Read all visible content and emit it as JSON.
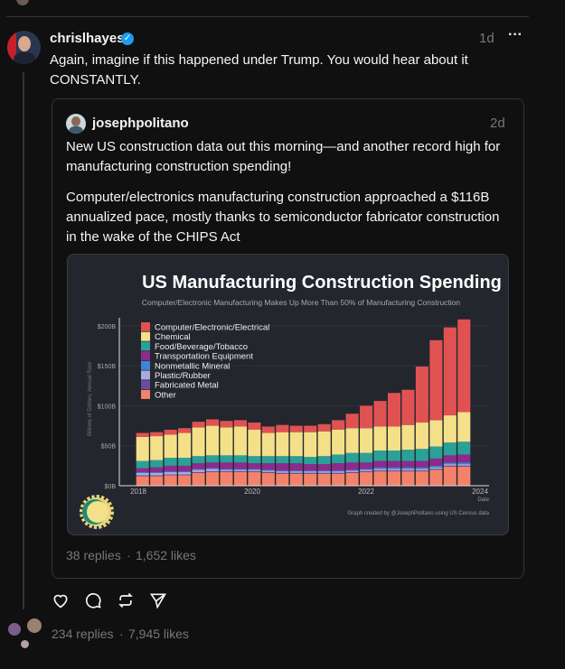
{
  "post": {
    "username": "chrislhayes",
    "verified": true,
    "time": "1d",
    "more_label": "···",
    "text": "Again, imagine if this happened under Trump. You would hear about it CONSTANTLY.",
    "replies": "234 replies",
    "separator": "·",
    "likes": "7,945 likes"
  },
  "quoted": {
    "username": "josephpolitano",
    "time": "2d",
    "paragraph1": "New US construction data out this morning—and another record high for manufacturing construction spending!",
    "paragraph2": "Computer/electronics manufacturing construction approached a $116B annualized pace, mostly thanks to semiconductor fabricator construction in the wake of the CHIPS Act",
    "replies": "38 replies",
    "separator": "·",
    "likes": "1,652 likes"
  },
  "colors": {
    "verified": "#1d9bf0",
    "background": "#101010"
  },
  "chart_data": {
    "type": "bar",
    "stacked": true,
    "title": "US Manufacturing Construction Spending",
    "subtitle": "Computer/Electronic Manufacturing Makes Up More Than 50% of Manufacturing Construction",
    "ylabel": "Billions of Dollars, Annual Rate",
    "xlabel": "Date",
    "credit": "Graph created by @JosephPolitano using US Census data",
    "ylim": [
      0,
      210
    ],
    "yticks": [
      "$0B",
      "$50B",
      "$100B",
      "$150B",
      "$200B"
    ],
    "ytick_values": [
      0,
      50,
      100,
      150,
      200
    ],
    "xticks": [
      "2018",
      "2020",
      "2022",
      "2024"
    ],
    "x": [
      "2018Q1",
      "2018Q2",
      "2018Q3",
      "2018Q4",
      "2019Q1",
      "2019Q2",
      "2019Q3",
      "2019Q4",
      "2020Q1",
      "2020Q2",
      "2020Q3",
      "2020Q4",
      "2021Q1",
      "2021Q2",
      "2021Q3",
      "2021Q4",
      "2022Q1",
      "2022Q2",
      "2022Q3",
      "2022Q4",
      "2023Q1",
      "2023Q2",
      "2023Q3",
      "2023Q4"
    ],
    "legend_position": "top-left",
    "series": [
      {
        "name": "Other",
        "color": "#f4826a",
        "values": [
          12,
          12,
          13,
          13,
          16,
          17,
          17,
          17,
          17,
          16,
          15,
          15,
          15,
          15,
          15,
          16,
          17,
          18,
          18,
          18,
          18,
          20,
          24,
          24
        ]
      },
      {
        "name": "Fabricated Metal",
        "color": "#6a4c9c",
        "values": [
          1,
          1,
          1,
          1,
          1,
          1,
          1,
          1,
          1,
          1,
          1,
          1,
          1,
          1,
          1,
          1,
          1,
          1,
          1,
          1,
          1,
          1,
          1,
          1
        ]
      },
      {
        "name": "Plastic/Rubber",
        "color": "#a9a9e0",
        "values": [
          3,
          3,
          3,
          3,
          3,
          3,
          2,
          2,
          2,
          2,
          2,
          2,
          2,
          2,
          2,
          2,
          2,
          2,
          2,
          2,
          2,
          2,
          2,
          2
        ]
      },
      {
        "name": "Nonmetallic Mineral",
        "color": "#3d85d8",
        "values": [
          1,
          1,
          1,
          1,
          1,
          1,
          1,
          1,
          1,
          1,
          1,
          1,
          1,
          1,
          1,
          1,
          1,
          2,
          2,
          2,
          2,
          2,
          2,
          2
        ]
      },
      {
        "name": "Transportation Equipment",
        "color": "#8e2a8e",
        "values": [
          5,
          6,
          7,
          7,
          7,
          7,
          8,
          8,
          7,
          8,
          9,
          9,
          8,
          8,
          9,
          9,
          8,
          8,
          8,
          8,
          8,
          9,
          9,
          10
        ]
      },
      {
        "name": "Food/Beverage/Tobacco",
        "color": "#2aa198",
        "values": [
          9,
          9,
          10,
          10,
          9,
          9,
          9,
          9,
          9,
          9,
          9,
          9,
          9,
          10,
          11,
          12,
          12,
          13,
          13,
          14,
          15,
          15,
          16,
          16
        ]
      },
      {
        "name": "Chemical",
        "color": "#f5e08a",
        "values": [
          30,
          30,
          29,
          31,
          36,
          37,
          35,
          36,
          33,
          29,
          30,
          30,
          31,
          31,
          31,
          31,
          31,
          30,
          30,
          31,
          33,
          33,
          34,
          37
        ]
      },
      {
        "name": "Computer/Electronic/Electrical",
        "color": "#e05252",
        "values": [
          5,
          5,
          6,
          6,
          7,
          8,
          8,
          8,
          9,
          8,
          9,
          8,
          8,
          9,
          12,
          18,
          28,
          32,
          42,
          44,
          70,
          100,
          110,
          116
        ]
      }
    ]
  }
}
